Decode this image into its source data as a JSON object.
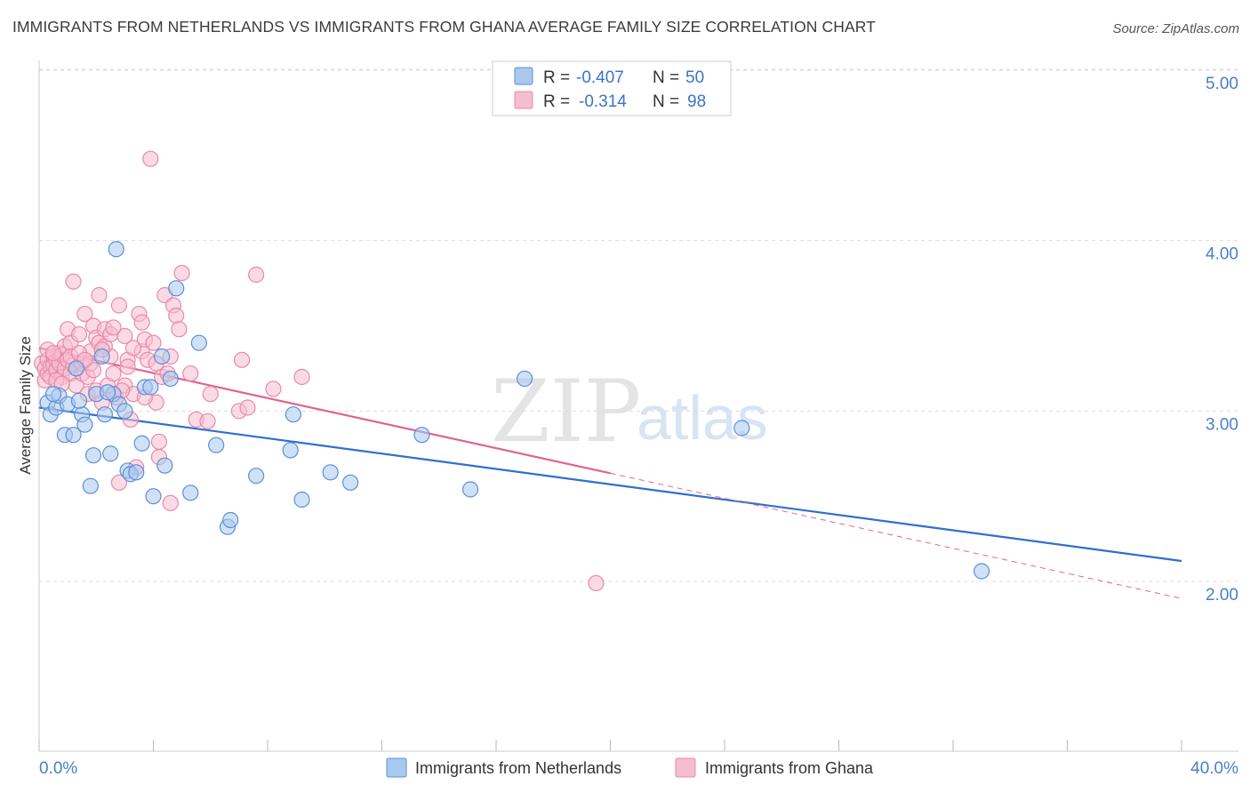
{
  "title": "IMMIGRANTS FROM NETHERLANDS VS IMMIGRANTS FROM GHANA AVERAGE FAMILY SIZE CORRELATION CHART",
  "source": "Source: ZipAtlas.com",
  "watermark": {
    "zip": "ZIP",
    "atlas": "atlas"
  },
  "colors": {
    "netherlands_fill": "#a9c8ee",
    "netherlands_stroke": "#5b8fd6",
    "netherlands_line": "#2f6fce",
    "ghana_fill": "#f6bdd0",
    "ghana_stroke": "#e889a9",
    "ghana_line": "#e0648f",
    "tick_text": "#4a7fc8",
    "grid": "#dddddd"
  },
  "stats": [
    {
      "r_label": "R =",
      "r_value": "-0.407",
      "n_label": "N =",
      "n_value": "50",
      "series": "netherlands"
    },
    {
      "r_label": "R =",
      "r_value": "-0.314",
      "n_label": "N =",
      "n_value": "98",
      "series": "ghana"
    }
  ],
  "chart_data": {
    "type": "scatter",
    "title": "IMMIGRANTS FROM NETHERLANDS VS IMMIGRANTS FROM GHANA AVERAGE FAMILY SIZE CORRELATION CHART",
    "xlabel": "",
    "ylabel": "Average Family Size",
    "xlim": [
      0,
      40
    ],
    "ylim": [
      1.0,
      5.1
    ],
    "x_tick_labels": [
      "0.0%",
      "40.0%"
    ],
    "y_ticks": [
      2.0,
      3.0,
      4.0,
      5.0
    ],
    "y_tick_labels": [
      "2.00",
      "3.00",
      "4.00",
      "5.00"
    ],
    "legend_position": "bottom-center",
    "series": [
      {
        "name": "Immigrants from Netherlands",
        "key": "netherlands",
        "trend": {
          "x0": 0,
          "y0": 3.02,
          "x1": 40,
          "y1": 2.12,
          "solid_until": 40
        },
        "points": [
          [
            0.3,
            3.05
          ],
          [
            0.4,
            2.98
          ],
          [
            0.6,
            3.02
          ],
          [
            0.7,
            3.09
          ],
          [
            0.9,
            2.86
          ],
          [
            1.0,
            3.04
          ],
          [
            1.2,
            2.86
          ],
          [
            1.3,
            3.25
          ],
          [
            1.5,
            2.98
          ],
          [
            1.6,
            2.92
          ],
          [
            1.8,
            2.56
          ],
          [
            1.9,
            2.74
          ],
          [
            2.0,
            3.1
          ],
          [
            2.2,
            3.32
          ],
          [
            2.3,
            2.98
          ],
          [
            2.5,
            2.75
          ],
          [
            2.6,
            3.1
          ],
          [
            2.7,
            3.95
          ],
          [
            2.8,
            3.04
          ],
          [
            3.0,
            3.0
          ],
          [
            3.1,
            2.65
          ],
          [
            3.2,
            2.63
          ],
          [
            3.4,
            2.64
          ],
          [
            3.6,
            2.81
          ],
          [
            3.7,
            3.14
          ],
          [
            4.0,
            2.5
          ],
          [
            4.3,
            3.32
          ],
          [
            4.4,
            2.68
          ],
          [
            4.6,
            3.19
          ],
          [
            4.8,
            3.72
          ],
          [
            5.3,
            2.52
          ],
          [
            5.6,
            3.4
          ],
          [
            6.2,
            2.8
          ],
          [
            6.6,
            2.32
          ],
          [
            6.7,
            2.36
          ],
          [
            7.6,
            2.62
          ],
          [
            8.8,
            2.77
          ],
          [
            8.9,
            2.98
          ],
          [
            9.2,
            2.48
          ],
          [
            10.2,
            2.64
          ],
          [
            10.9,
            2.58
          ],
          [
            13.4,
            2.86
          ],
          [
            15.1,
            2.54
          ],
          [
            17.0,
            3.19
          ],
          [
            24.6,
            2.9
          ],
          [
            33.0,
            2.06
          ],
          [
            0.5,
            3.1
          ],
          [
            2.4,
            3.11
          ],
          [
            1.4,
            3.06
          ],
          [
            3.9,
            3.14
          ]
        ]
      },
      {
        "name": "Immigrants from Ghana",
        "key": "ghana",
        "trend": {
          "x0": 0,
          "y0": 3.37,
          "x1": 40,
          "y1": 1.9,
          "solid_until": 20
        },
        "points": [
          [
            0.1,
            3.28
          ],
          [
            0.2,
            3.25
          ],
          [
            0.2,
            3.18
          ],
          [
            0.3,
            3.22
          ],
          [
            0.3,
            3.3
          ],
          [
            0.4,
            3.26
          ],
          [
            0.4,
            3.2
          ],
          [
            0.5,
            3.32
          ],
          [
            0.5,
            3.27
          ],
          [
            0.6,
            3.24
          ],
          [
            0.6,
            3.3
          ],
          [
            0.7,
            3.28
          ],
          [
            0.7,
            3.34
          ],
          [
            0.8,
            3.2
          ],
          [
            0.8,
            3.33
          ],
          [
            0.9,
            3.25
          ],
          [
            0.9,
            3.38
          ],
          [
            1.0,
            3.3
          ],
          [
            1.0,
            3.48
          ],
          [
            1.1,
            3.22
          ],
          [
            1.1,
            3.4
          ],
          [
            1.2,
            3.76
          ],
          [
            1.2,
            3.27
          ],
          [
            1.3,
            3.15
          ],
          [
            1.4,
            3.45
          ],
          [
            1.5,
            3.22
          ],
          [
            1.5,
            3.28
          ],
          [
            1.6,
            3.57
          ],
          [
            1.7,
            3.2
          ],
          [
            1.7,
            3.1
          ],
          [
            1.8,
            3.35
          ],
          [
            1.8,
            3.28
          ],
          [
            1.9,
            3.5
          ],
          [
            2.0,
            3.43
          ],
          [
            2.0,
            3.12
          ],
          [
            2.1,
            3.68
          ],
          [
            2.1,
            3.4
          ],
          [
            2.2,
            3.05
          ],
          [
            2.3,
            3.48
          ],
          [
            2.3,
            3.38
          ],
          [
            2.4,
            3.15
          ],
          [
            2.5,
            3.32
          ],
          [
            2.5,
            3.45
          ],
          [
            2.6,
            3.22
          ],
          [
            2.7,
            3.08
          ],
          [
            2.8,
            3.62
          ],
          [
            2.8,
            2.58
          ],
          [
            3.0,
            3.44
          ],
          [
            3.0,
            3.15
          ],
          [
            3.1,
            3.3
          ],
          [
            3.2,
            2.95
          ],
          [
            3.3,
            3.1
          ],
          [
            3.4,
            2.67
          ],
          [
            3.5,
            3.57
          ],
          [
            3.6,
            3.52
          ],
          [
            3.6,
            3.35
          ],
          [
            3.7,
            3.42
          ],
          [
            3.8,
            3.3
          ],
          [
            3.9,
            4.48
          ],
          [
            4.0,
            3.4
          ],
          [
            4.1,
            3.05
          ],
          [
            4.2,
            2.82
          ],
          [
            4.2,
            2.73
          ],
          [
            4.3,
            3.2
          ],
          [
            4.4,
            3.68
          ],
          [
            4.6,
            3.32
          ],
          [
            4.6,
            2.46
          ],
          [
            4.7,
            3.62
          ],
          [
            4.8,
            3.56
          ],
          [
            4.9,
            3.48
          ],
          [
            5.0,
            3.81
          ],
          [
            5.3,
            3.22
          ],
          [
            5.5,
            2.95
          ],
          [
            5.9,
            2.94
          ],
          [
            6.0,
            3.1
          ],
          [
            7.0,
            3.0
          ],
          [
            7.1,
            3.3
          ],
          [
            7.3,
            3.02
          ],
          [
            7.6,
            3.8
          ],
          [
            8.2,
            3.13
          ],
          [
            9.2,
            3.2
          ],
          [
            19.5,
            1.99
          ],
          [
            0.3,
            3.36
          ],
          [
            0.6,
            3.18
          ],
          [
            1.1,
            3.32
          ],
          [
            1.9,
            3.24
          ],
          [
            2.6,
            3.49
          ],
          [
            3.1,
            3.26
          ],
          [
            3.3,
            3.37
          ],
          [
            4.5,
            3.22
          ],
          [
            2.2,
            3.36
          ],
          [
            1.4,
            3.34
          ],
          [
            0.8,
            3.16
          ],
          [
            3.7,
            3.08
          ],
          [
            2.9,
            3.12
          ],
          [
            1.6,
            3.3
          ],
          [
            0.5,
            3.34
          ],
          [
            4.1,
            3.28
          ]
        ]
      }
    ]
  }
}
